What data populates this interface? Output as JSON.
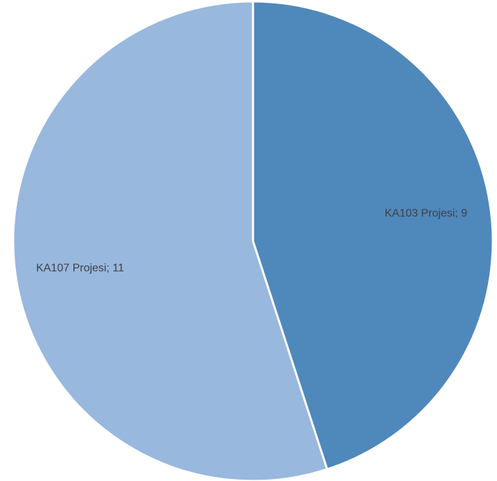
{
  "chart_data": {
    "type": "pie",
    "categories": [
      "KA103 Projesi",
      "KA107 Projesi"
    ],
    "values": [
      9,
      11
    ],
    "value_labels": [
      "KA103 Projesi; 9",
      "KA107 Projesi; 11"
    ],
    "colors": [
      "#4f88bb",
      "#98b8de"
    ]
  }
}
